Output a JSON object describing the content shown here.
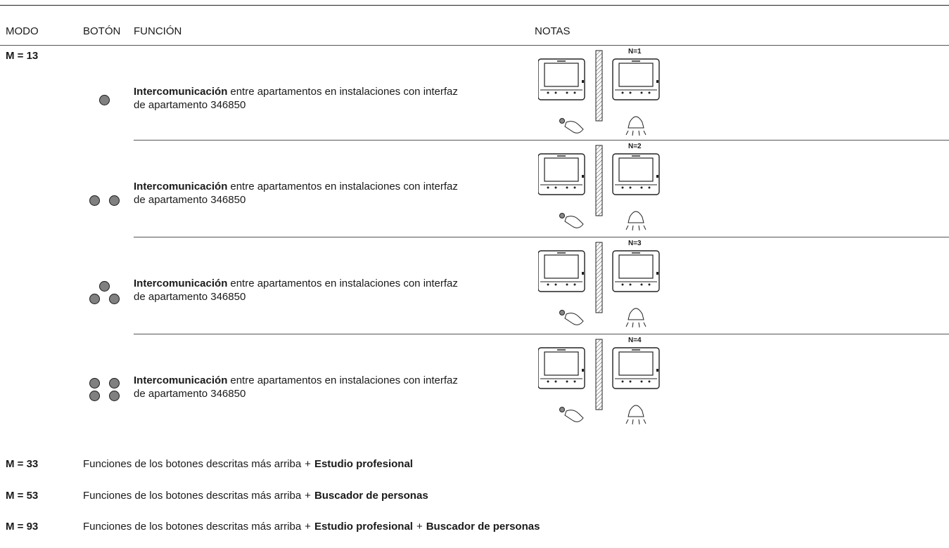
{
  "header": {
    "columns": [
      "MODO",
      "BOTÓN",
      "FUNCIÓN",
      "NOTAS"
    ]
  },
  "mode": "M = 13",
  "rows": [
    {
      "function_bold": "Intercomunicación",
      "function_line1": "entre apartamentos en instalaciones con interfaz",
      "function_line2": "de apartamento 346850",
      "note_label": "N=1"
    },
    {
      "function_bold": "Intercomunicación",
      "function_line1": "entre apartamentos en instalaciones con interfaz",
      "function_line2": "de apartamento 346850",
      "note_label": "N=2"
    },
    {
      "function_bold": "Intercomunicación",
      "function_line1": "entre apartamentos en instalaciones con interfaz",
      "function_line2": "de apartamento 346850",
      "note_label": "N=3"
    },
    {
      "function_bold": "Intercomunicación",
      "function_line1": "entre apartamentos en instalaciones con interfaz",
      "function_line2": "de apartamento 346850",
      "note_label": "N=4"
    }
  ],
  "plus": "+",
  "extra_modes": [
    {
      "mode": "M = 33",
      "text": "Funciones de los botones descritas más arriba",
      "bold": [
        "Estudio profesional"
      ]
    },
    {
      "mode": "M = 53",
      "text": "Funciones de los botones descritas más arriba",
      "bold": [
        "Buscador de personas"
      ]
    },
    {
      "mode": "M = 93",
      "text": "Funciones de los botones descritas más arriba",
      "bold": [
        "Estudio profesional",
        "Buscador de personas"
      ]
    }
  ]
}
